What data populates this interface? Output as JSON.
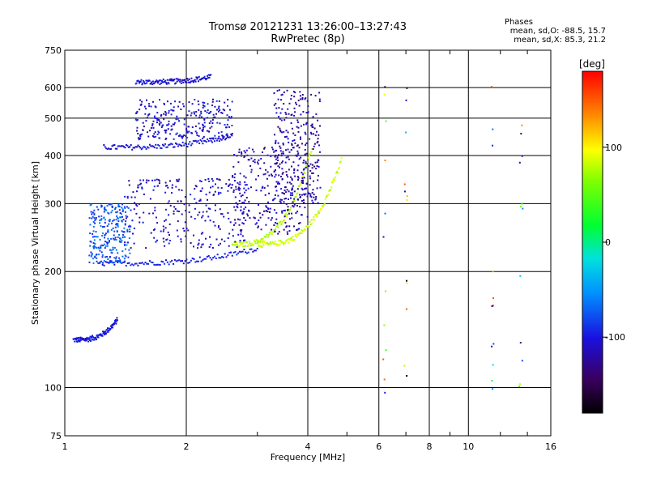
{
  "chart_data": {
    "type": "scatter",
    "title": "Tromsø 20121231 13:26:00–13:27:43",
    "subtitle": "RwPretec (8p)",
    "xlabel": "Frequency [MHz]",
    "ylabel": "Stationary phase Virtual Height [km]",
    "x_scale": "log",
    "y_scale": "log",
    "xlim": [
      1,
      16
    ],
    "ylim": [
      75,
      750
    ],
    "x_ticks": [
      "1",
      "2",
      "4",
      "6",
      "8",
      "10",
      "16"
    ],
    "y_ticks": [
      "75",
      "100",
      "200",
      "300",
      "400",
      "500",
      "600",
      "750"
    ],
    "grid": true,
    "phases_title": "Phases",
    "phases_o": "mean, sd,O:  -88.5, 15.7",
    "phases_x": "mean, sd,X:  85.3, 21.2",
    "colorbar": {
      "label": "[deg]",
      "ticks": [
        "100",
        "0",
        "-100"
      ],
      "tick_values": [
        100,
        0,
        -100
      ],
      "range": [
        -180,
        180
      ]
    },
    "traces": [
      {
        "f_start": 1.05,
        "f_end": 1.35,
        "h_start": 133,
        "h_end": 150,
        "phase": -100
      },
      {
        "f_start": 1.5,
        "f_end": 2.3,
        "h_start": 620,
        "h_end": 640,
        "phase": -105
      },
      {
        "f_start": 1.25,
        "f_end": 2.6,
        "h_start": 420,
        "h_end": 450,
        "phase": -100
      },
      {
        "f_start": 1.2,
        "f_end": 3.0,
        "h_start": 210,
        "h_end": 230,
        "phase": -95
      },
      {
        "f_start": 3.0,
        "f_end": 4.85,
        "h_start": 235,
        "h_end": 390,
        "phase": 85
      },
      {
        "f_start": 2.6,
        "f_end": 4.1,
        "h_start": 235,
        "h_end": 420,
        "phase": 80
      }
    ],
    "clusters": [
      {
        "f_min": 1.15,
        "f_max": 1.45,
        "h_min": 210,
        "h_max": 300,
        "phase": -75
      },
      {
        "f_min": 1.4,
        "f_max": 2.8,
        "h_min": 230,
        "h_max": 350,
        "phase": -110
      },
      {
        "f_min": 2.6,
        "f_max": 4.0,
        "h_min": 250,
        "h_max": 420,
        "phase": -115
      },
      {
        "f_min": 1.5,
        "f_max": 2.6,
        "h_min": 440,
        "h_max": 560,
        "phase": -105
      },
      {
        "f_min": 3.3,
        "f_max": 4.3,
        "h_min": 300,
        "h_max": 600,
        "phase": -120
      }
    ],
    "vertical_streaks": [
      {
        "f": 6.2,
        "h_min": 90,
        "h_max": 650
      },
      {
        "f": 7.0,
        "h_min": 100,
        "h_max": 620
      },
      {
        "f": 11.5,
        "h_min": 95,
        "h_max": 620
      },
      {
        "f": 13.5,
        "h_min": 95,
        "h_max": 480
      }
    ]
  }
}
